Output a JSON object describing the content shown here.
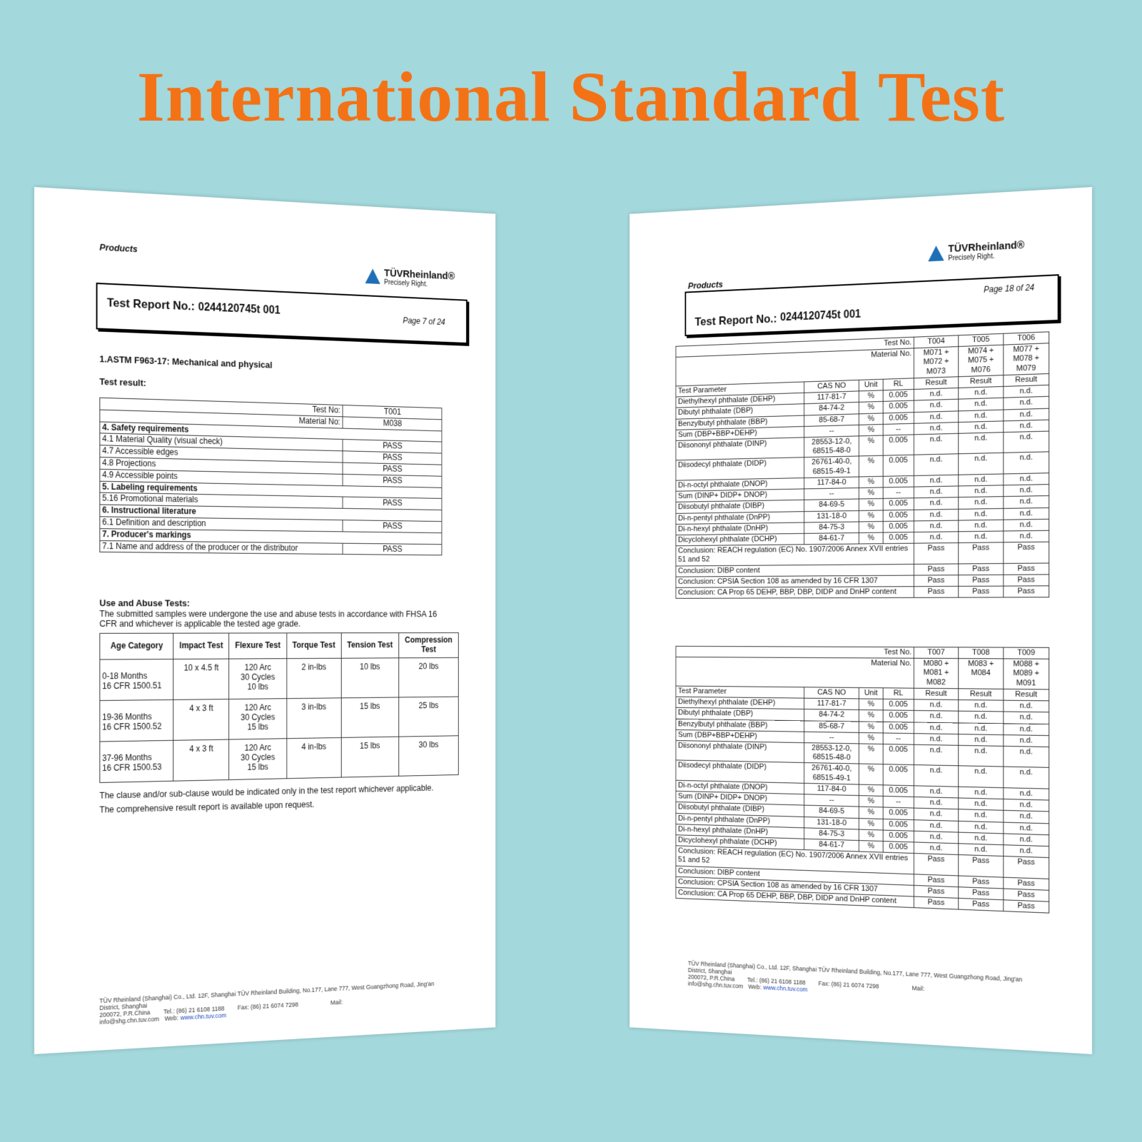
{
  "title": "International Standard Test",
  "left_page": {
    "header_label": "Products",
    "brand": "TÜVRheinland®",
    "tagline": "Precisely Right.",
    "report_label": "Test Report No.:",
    "report_no": "0244120745t 001",
    "page": "Page 7 of 24",
    "section": "1.ASTM F963-17: Mechanical and physical",
    "result_label": "Test result:",
    "result_table": {
      "rows": [
        [
          "Test No:",
          "T001"
        ],
        [
          "Material No:",
          "M038"
        ],
        [
          "4. Safety requirements"
        ],
        [
          "4.1 Material Quality (visual check)",
          "PASS"
        ],
        [
          "4.7 Accessible edges",
          "PASS"
        ],
        [
          "4.8 Projections",
          "PASS"
        ],
        [
          "4.9 Accessible points",
          "PASS"
        ],
        [
          "5. Labeling requirements"
        ],
        [
          "5.16 Promotional materials",
          "PASS"
        ],
        [
          "6. Instructional literature"
        ],
        [
          "6.1 Definition and description",
          "PASS"
        ],
        [
          "7. Producer's markings"
        ],
        [
          "7.1 Name and address of the producer or the distributor",
          "PASS"
        ]
      ]
    },
    "abuse_title": "Use and Abuse Tests:",
    "abuse_text": "The submitted samples were undergone the use and abuse tests in accordance with FHSA 16 CFR and whichever is applicable the tested age grade.",
    "abuse_table": {
      "header": [
        "Age Category",
        "Impact Test",
        "Flexure Test",
        "Torque Test",
        "Tension Test",
        "Compression\nTest"
      ],
      "rows": [
        [
          "0-18 Months\n16 CFR 1500.51",
          "10 x 4.5 ft",
          "120 Arc\n30 Cycles\n10 lbs",
          "2 in-lbs",
          "10 lbs",
          "20 lbs"
        ],
        [
          "19-36 Months\n16 CFR 1500.52",
          "4 x 3 ft",
          "120 Arc\n30 Cycles\n15 lbs",
          "3 in-lbs",
          "15 lbs",
          "25 lbs"
        ],
        [
          "37-96 Months\n16 CFR 1500.53",
          "4 x 3 ft",
          "120 Arc\n30 Cycles\n15 lbs",
          "4 in-lbs",
          "15 lbs",
          "30 lbs"
        ]
      ]
    },
    "note": "The clause and/or sub-clause would be indicated only in the test report whichever applicable. The comprehensive result report is available upon request.",
    "footer": {
      "address": "TÜV Rheinland (Shanghai) Co., Ltd. 12F, Shanghai TÜV Rheinland Building, No.177, Lane 777, West Guangzhong Road, Jing'an District, Shanghai",
      "postcode": "200072, P.R.China",
      "tel": "Tel.: (86) 21 6108 1188",
      "fax": "Fax: (86) 21 6074 7298",
      "mail": "Mail: info@shg.chn.tuv.com",
      "web_label": "Web:",
      "web": "www.chn.tuv.com"
    }
  },
  "right_page": {
    "header_label": "Products",
    "brand": "TÜVRheinland®",
    "tagline": "Precisely Right.",
    "report_label": "Test Report No.:",
    "report_no": "0244120745t 001",
    "page": "Page 18 of 24",
    "tables": [
      {
        "test_no_label": "Test No.",
        "material_no_label": "Material No.",
        "test_nos": [
          "T004",
          "T005",
          "T006"
        ],
        "material_nos": [
          "M071 +\nM072 +\nM073",
          "M074 +\nM075 +\nM076",
          "M077 +\nM078 +\nM079"
        ],
        "columns": [
          "Test Parameter",
          "CAS NO",
          "Unit",
          "RL"
        ],
        "result_label": "Result",
        "rows": [
          [
            "Diethylhexyl phthalate (DEHP)",
            "117-81-7",
            "%",
            "0.005",
            "n.d.",
            "n.d.",
            "n.d."
          ],
          [
            "Dibutyl phthalate (DBP)",
            "84-74-2",
            "%",
            "0.005",
            "n.d.",
            "n.d.",
            "n.d."
          ],
          [
            "Benzylbutyl phthalate (BBP)",
            "85-68-7",
            "%",
            "0.005",
            "n.d.",
            "n.d.",
            "n.d."
          ],
          [
            "Sum (DBP+BBP+DEHP)",
            "--",
            "%",
            "--",
            "n.d.",
            "n.d.",
            "n.d."
          ],
          [
            "Diisononyl phthalate (DINP)",
            "28553-12-0,\n68515-48-0",
            "%",
            "0.005",
            "n.d.",
            "n.d.",
            "n.d."
          ],
          [
            "Diisodecyl phthalate (DIDP)",
            "26761-40-0,\n68515-49-1",
            "%",
            "0.005",
            "n.d.",
            "n.d.",
            "n.d."
          ],
          [
            "Di-n-octyl phthalate (DNOP)",
            "117-84-0",
            "%",
            "0.005",
            "n.d.",
            "n.d.",
            "n.d."
          ],
          [
            "Sum (DINP+ DIDP+ DNOP)",
            "--",
            "%",
            "--",
            "n.d.",
            "n.d.",
            "n.d."
          ],
          [
            "Diisobutyl phthalate (DIBP)",
            "84-69-5",
            "%",
            "0.005",
            "n.d.",
            "n.d.",
            "n.d."
          ],
          [
            "Di-n-pentyl phthalate (DnPP)",
            "131-18-0",
            "%",
            "0.005",
            "n.d.",
            "n.d.",
            "n.d."
          ],
          [
            "Di-n-hexyl phthalate (DnHP)",
            "84-75-3",
            "%",
            "0.005",
            "n.d.",
            "n.d.",
            "n.d."
          ],
          [
            "Dicyclohexyl phthalate (DCHP)",
            "84-61-7",
            "%",
            "0.005",
            "n.d.",
            "n.d.",
            "n.d."
          ]
        ],
        "conclusions": [
          [
            "Conclusion: REACH regulation (EC) No. 1907/2006 Annex XVII entries 51 and 52",
            "Pass",
            "Pass",
            "Pass"
          ],
          [
            "Conclusion: DIBP content",
            "Pass",
            "Pass",
            "Pass"
          ],
          [
            "Conclusion: CPSIA Section 108 as amended by 16 CFR 1307",
            "Pass",
            "Pass",
            "Pass"
          ],
          [
            "Conclusion: CA Prop 65 DEHP, BBP, DBP, DIDP and DnHP content",
            "Pass",
            "Pass",
            "Pass"
          ]
        ]
      },
      {
        "test_no_label": "Test No.",
        "material_no_label": "Material No.",
        "test_nos": [
          "T007",
          "T008",
          "T009"
        ],
        "material_nos": [
          "M080 +\nM081 +\nM082",
          "M083 +\nM084",
          "M088 +\nM089 +\nM091"
        ],
        "columns": [
          "Test Parameter",
          "CAS NO",
          "Unit",
          "RL"
        ],
        "result_label": "Result",
        "rows": [
          [
            "Diethylhexyl phthalate (DEHP)",
            "117-81-7",
            "%",
            "0.005",
            "n.d.",
            "n.d.",
            "n.d."
          ],
          [
            "Dibutyl phthalate (DBP)",
            "84-74-2",
            "%",
            "0.005",
            "n.d.",
            "n.d.",
            "n.d."
          ],
          [
            "Benzylbutyl phthalate (BBP)",
            "85-68-7",
            "%",
            "0.005",
            "n.d.",
            "n.d.",
            "n.d."
          ],
          [
            "Sum (DBP+BBP+DEHP)",
            "--",
            "%",
            "--",
            "n.d.",
            "n.d.",
            "n.d."
          ],
          [
            "Diisononyl phthalate (DINP)",
            "28553-12-0,\n68515-48-0",
            "%",
            "0.005",
            "n.d.",
            "n.d.",
            "n.d."
          ],
          [
            "Diisodecyl phthalate (DIDP)",
            "26761-40-0,\n68515-49-1",
            "%",
            "0.005",
            "n.d.",
            "n.d.",
            "n.d."
          ],
          [
            "Di-n-octyl phthalate (DNOP)",
            "117-84-0",
            "%",
            "0.005",
            "n.d.",
            "n.d.",
            "n.d."
          ],
          [
            "Sum (DINP+ DIDP+ DNOP)",
            "--",
            "%",
            "--",
            "n.d.",
            "n.d.",
            "n.d."
          ],
          [
            "Diisobutyl phthalate (DIBP)",
            "84-69-5",
            "%",
            "0.005",
            "n.d.",
            "n.d.",
            "n.d."
          ],
          [
            "Di-n-pentyl phthalate (DnPP)",
            "131-18-0",
            "%",
            "0.005",
            "n.d.",
            "n.d.",
            "n.d."
          ],
          [
            "Di-n-hexyl phthalate (DnHP)",
            "84-75-3",
            "%",
            "0.005",
            "n.d.",
            "n.d.",
            "n.d."
          ],
          [
            "Dicyclohexyl phthalate (DCHP)",
            "84-61-7",
            "%",
            "0.005",
            "n.d.",
            "n.d.",
            "n.d."
          ]
        ],
        "conclusions": [
          [
            "Conclusion: REACH regulation (EC) No. 1907/2006 Annex XVII entries 51 and 52",
            "Pass",
            "Pass",
            "Pass"
          ],
          [
            "Conclusion: DIBP content",
            "Pass",
            "Pass",
            "Pass"
          ],
          [
            "Conclusion: CPSIA Section 108 as amended by 16 CFR 1307",
            "Pass",
            "Pass",
            "Pass"
          ],
          [
            "Conclusion: CA Prop 65 DEHP, BBP, DBP, DIDP and DnHP content",
            "Pass",
            "Pass",
            "Pass"
          ]
        ]
      }
    ],
    "footer": {
      "address": "TÜV Rheinland (Shanghai) Co., Ltd. 12F, Shanghai TÜV Rheinland Building, No.177, Lane 777, West Guangzhong Road, Jing'an District, Shanghai",
      "postcode": "200072, P.R.China",
      "tel": "Tel.: (86) 21 6108 1188",
      "fax": "Fax: (86) 21 6074 7298",
      "mail": "Mail: info@shg.chn.tuv.com",
      "web_label": "Web:",
      "web": "www.chn.tuv.com"
    }
  }
}
